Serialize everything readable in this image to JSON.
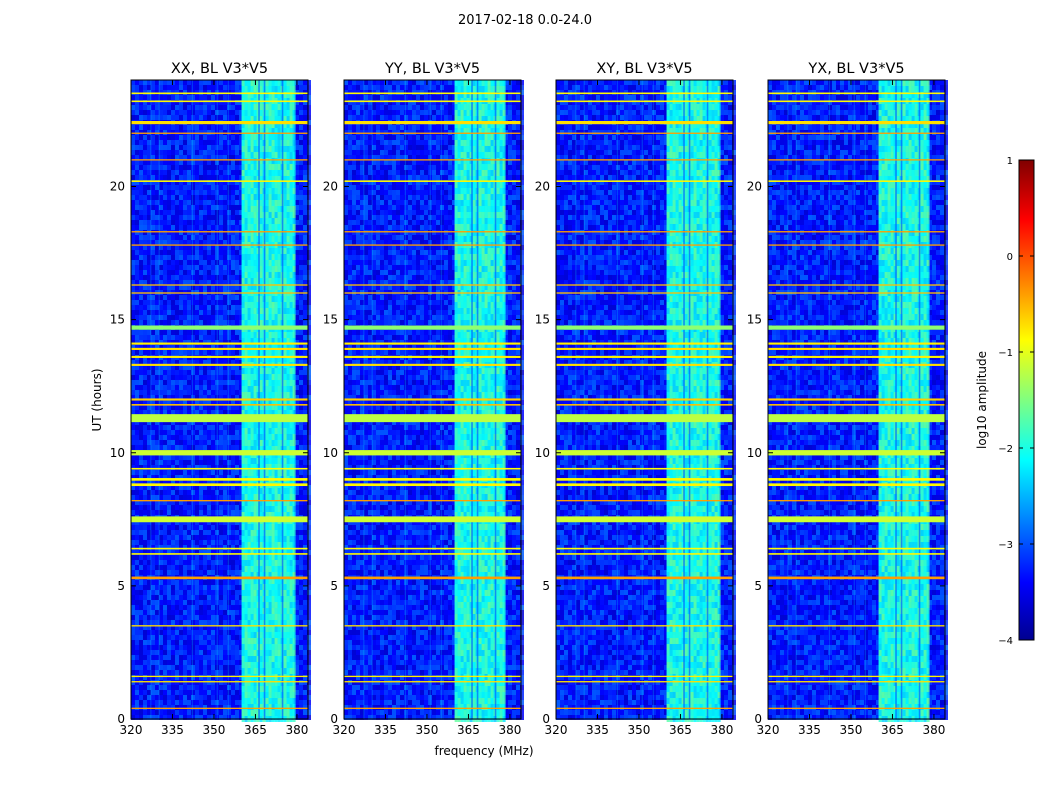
{
  "figure": {
    "suptitle": "2017-02-18 0.0-24.0"
  },
  "chart_data": {
    "type": "heatmap",
    "title": "2017-02-18 0.0-24.0",
    "xlabel": "frequency (MHz)",
    "ylabel": "UT (hours)",
    "xlim": [
      320,
      384
    ],
    "ylim": [
      0,
      24
    ],
    "xticks": [
      320,
      335,
      350,
      365,
      380
    ],
    "yticks": [
      0,
      5,
      10,
      15,
      20
    ],
    "panels": [
      {
        "title": "XX, BL V3*V5"
      },
      {
        "title": "YY, BL V3*V5"
      },
      {
        "title": "XY, BL V3*V5"
      },
      {
        "title": "YX, BL V3*V5"
      }
    ],
    "colorbar": {
      "label": "log10 amplitude",
      "range": [
        -4,
        1
      ],
      "ticks": [
        1,
        0,
        -1,
        -2,
        -3,
        -4
      ],
      "colormap": "jet"
    },
    "rfi_band_mhz": [
      360,
      379
    ],
    "rfi_band_gaps_mhz": [
      366,
      368,
      374.5
    ],
    "rfi_band_far_edge_mhz": {
      "XX": 379,
      "YY": 378,
      "XY": 379,
      "YX": 378
    },
    "horizontal_lines": [
      {
        "ut": 11.3,
        "level": 0.5,
        "width_h": 0.3
      },
      {
        "ut": 10.0,
        "level": 0.55,
        "width_h": 0.2
      },
      {
        "ut": 7.5,
        "level": 0.55,
        "width_h": 0.22
      },
      {
        "ut": 9.0,
        "level": 0.72,
        "width_h": 0.1
      },
      {
        "ut": 8.8,
        "level": 0.72,
        "width_h": 0.1
      },
      {
        "ut": 9.4,
        "level": 0.7,
        "width_h": 0.06
      },
      {
        "ut": 6.4,
        "level": 0.7,
        "width_h": 0.06
      },
      {
        "ut": 6.2,
        "level": 0.72,
        "width_h": 0.06
      },
      {
        "ut": 23.2,
        "level": 0.72,
        "width_h": 0.06
      },
      {
        "ut": 23.5,
        "level": 0.72,
        "width_h": 0.06
      },
      {
        "ut": 22.4,
        "level": 0.8,
        "width_h": 0.12
      },
      {
        "ut": 20.2,
        "level": 0.72,
        "width_h": 0.06
      },
      {
        "ut": 14.7,
        "level": 1.2,
        "width_h": 0.16
      },
      {
        "ut": 14.1,
        "level": 0.75,
        "width_h": 0.08
      },
      {
        "ut": 13.9,
        "level": 0.8,
        "width_h": 0.08
      },
      {
        "ut": 13.6,
        "level": 0.75,
        "width_h": 0.08
      },
      {
        "ut": 13.3,
        "level": 0.8,
        "width_h": 0.08
      },
      {
        "ut": 12.0,
        "level": 0.85,
        "width_h": 0.08
      },
      {
        "ut": 11.8,
        "level": 0.9,
        "width_h": 0.06
      },
      {
        "ut": 5.3,
        "level": 1.0,
        "width_h": 0.1
      },
      {
        "ut": 3.5,
        "level": 0.8,
        "width_h": 0.05
      },
      {
        "ut": 1.6,
        "level": 0.75,
        "width_h": 0.05
      },
      {
        "ut": 1.4,
        "level": 0.8,
        "width_h": 0.05
      },
      {
        "ut": 16.3,
        "level": 0.9,
        "width_h": 0.05
      },
      {
        "ut": 16.0,
        "level": 0.9,
        "width_h": 0.05
      },
      {
        "ut": 18.3,
        "level": 1.0,
        "width_h": 0.05
      },
      {
        "ut": 17.8,
        "level": 1.0,
        "width_h": 0.05
      },
      {
        "ut": 21.0,
        "level": 1.0,
        "width_h": 0.05
      },
      {
        "ut": 22.0,
        "level": 1.0,
        "width_h": 0.05
      },
      {
        "ut": 8.2,
        "level": 1.0,
        "width_h": 0.05
      },
      {
        "ut": 0.4,
        "level": 1.0,
        "width_h": 0.05
      }
    ]
  }
}
